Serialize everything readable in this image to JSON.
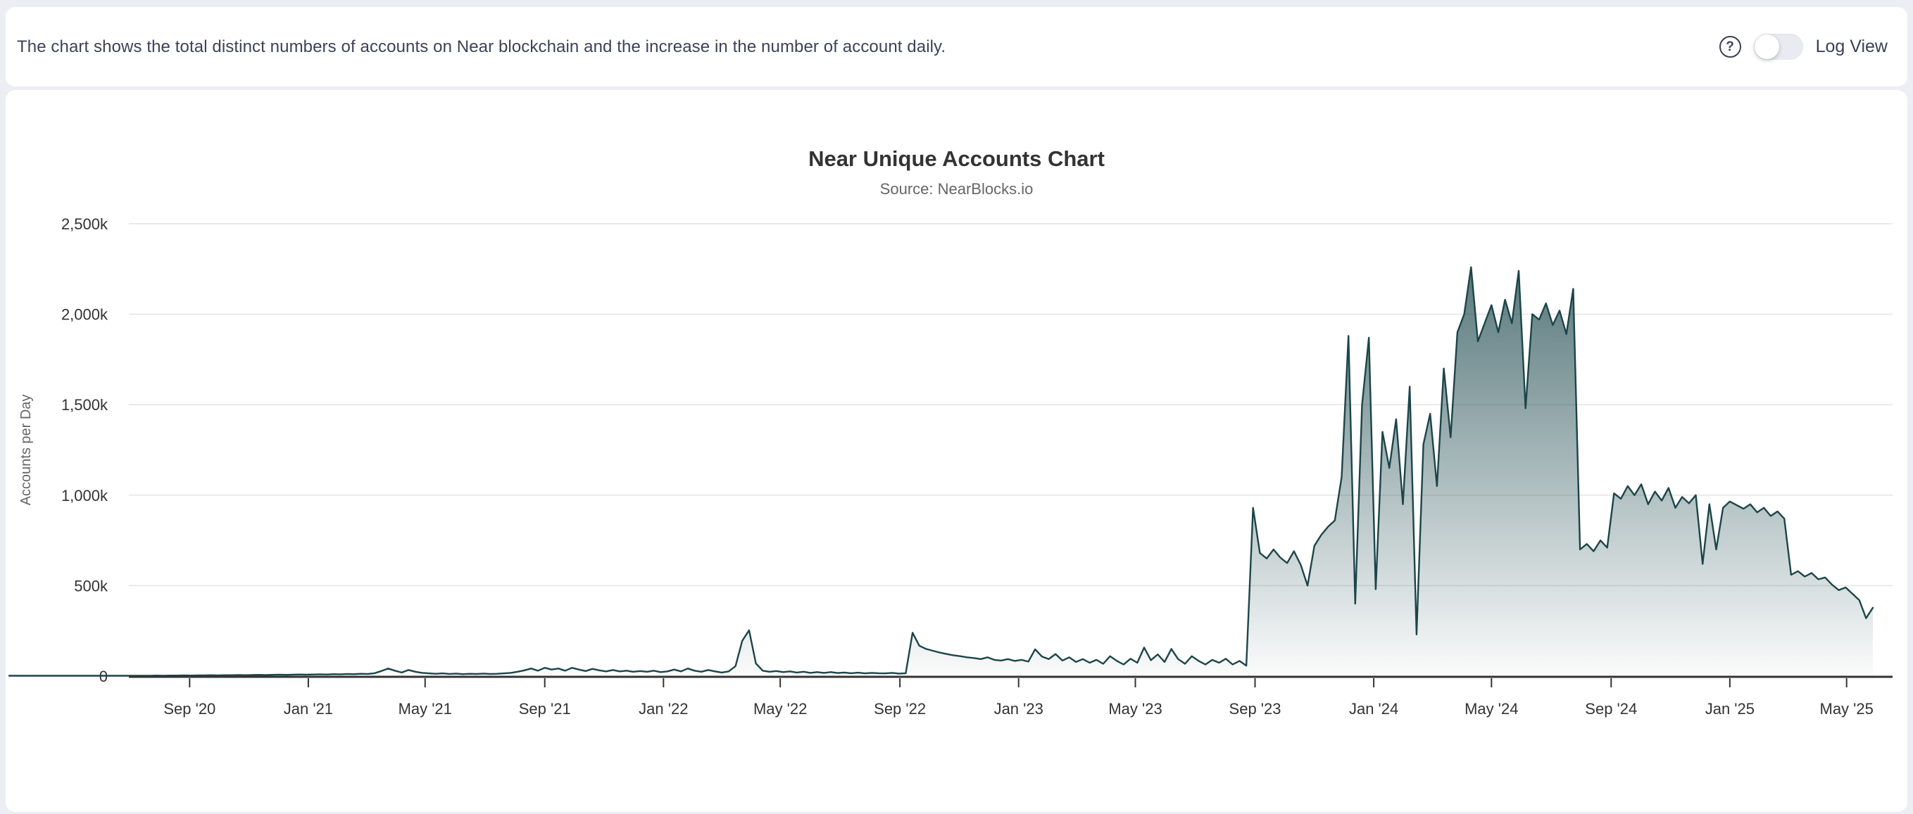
{
  "header": {
    "description": "The chart shows the total distinct numbers of accounts on Near blockchain and the increase in the number of account daily.",
    "help_glyph": "?",
    "toggle": {
      "label": "Log View",
      "state": "off"
    }
  },
  "chart_data": {
    "type": "area",
    "title": "Near Unique Accounts Chart",
    "subtitle": "Source: NearBlocks.io",
    "xlabel": "",
    "ylabel": "Accounts per Day",
    "unit": "thousands of accounts per day (k)",
    "ylim": [
      0,
      2500
    ],
    "grid": "horizontal",
    "legend": "none",
    "y_ticks": [
      {
        "value": 0,
        "label": "0"
      },
      {
        "value": 500,
        "label": "500k"
      },
      {
        "value": 1000,
        "label": "1,000k"
      },
      {
        "value": 1500,
        "label": "1,500k"
      },
      {
        "value": 2000,
        "label": "2,000k"
      },
      {
        "value": 2500,
        "label": "2,500k"
      }
    ],
    "x_ticks": [
      {
        "label": "Sep '20",
        "day": 48
      },
      {
        "label": "Jan '21",
        "day": 170
      },
      {
        "label": "May '21",
        "day": 290
      },
      {
        "label": "Sep '21",
        "day": 413
      },
      {
        "label": "Jan '22",
        "day": 535
      },
      {
        "label": "May '22",
        "day": 655
      },
      {
        "label": "Sep '22",
        "day": 778
      },
      {
        "label": "Jan '23",
        "day": 900
      },
      {
        "label": "May '23",
        "day": 1020
      },
      {
        "label": "Sep '23",
        "day": 1143
      },
      {
        "label": "Jan '24",
        "day": 1265
      },
      {
        "label": "May '24",
        "day": 1386
      },
      {
        "label": "Sep '24",
        "day": 1509
      },
      {
        "label": "Jan '25",
        "day": 1631
      },
      {
        "label": "May '25",
        "day": 1751
      }
    ],
    "series": [
      {
        "name": "Accounts per Day",
        "start_date": "2020-07-15",
        "interval_days": 7,
        "values_k": [
          2,
          2,
          3,
          2,
          3,
          3,
          4,
          3,
          4,
          4,
          5,
          4,
          5,
          5,
          6,
          5,
          6,
          7,
          6,
          7,
          8,
          7,
          8,
          9,
          8,
          9,
          10,
          9,
          11,
          10,
          12,
          11,
          13,
          12,
          16,
          28,
          42,
          30,
          20,
          34,
          24,
          18,
          15,
          13,
          15,
          12,
          14,
          11,
          13,
          12,
          14,
          12,
          13,
          15,
          18,
          24,
          32,
          42,
          30,
          46,
          36,
          42,
          30,
          46,
          36,
          28,
          40,
          32,
          26,
          34,
          26,
          30,
          24,
          28,
          24,
          30,
          22,
          26,
          36,
          26,
          42,
          30,
          24,
          34,
          26,
          20,
          26,
          55,
          195,
          253,
          70,
          30,
          24,
          28,
          22,
          26,
          20,
          24,
          18,
          22,
          18,
          22,
          17,
          20,
          16,
          19,
          15,
          18,
          16,
          15,
          18,
          14,
          16,
          240,
          168,
          150,
          140,
          130,
          122,
          115,
          110,
          104,
          100,
          94,
          104,
          90,
          86,
          94,
          84,
          90,
          80,
          148,
          108,
          94,
          122,
          86,
          104,
          78,
          94,
          74,
          90,
          68,
          110,
          84,
          64,
          96,
          74,
          158,
          88,
          120,
          78,
          150,
          94,
          68,
          110,
          84,
          64,
          90,
          74,
          96,
          64,
          84,
          58,
          930,
          680,
          650,
          700,
          655,
          625,
          690,
          615,
          500,
          720,
          780,
          825,
          860,
          1100,
          1880,
          400,
          1500,
          1870,
          480,
          1350,
          1150,
          1420,
          950,
          1600,
          230,
          1280,
          1450,
          1050,
          1700,
          1320,
          1900,
          2000,
          2260,
          1850,
          1950,
          2050,
          1900,
          2080,
          1950,
          2240,
          1480,
          2000,
          1970,
          2060,
          1940,
          2020,
          1890,
          2140,
          700,
          730,
          690,
          750,
          710,
          1010,
          980,
          1050,
          1000,
          1060,
          950,
          1020,
          970,
          1040,
          930,
          990,
          955,
          1000,
          620,
          950,
          700,
          930,
          965,
          945,
          925,
          950,
          905,
          930,
          885,
          910,
          870,
          560,
          580,
          550,
          570,
          535,
          545,
          505,
          475,
          490,
          455,
          420,
          320,
          378
        ]
      }
    ],
    "colors": {
      "line": "#1c4549",
      "fill_top": "rgba(26,70,75,0.8)",
      "fill_bottom": "rgba(26,70,75,0.02)",
      "grid": "#e4e4e4",
      "axis": "#333333",
      "tick_label": "#333333",
      "title": "#333333",
      "subtitle": "#666666",
      "axis_title": "#666666"
    }
  }
}
